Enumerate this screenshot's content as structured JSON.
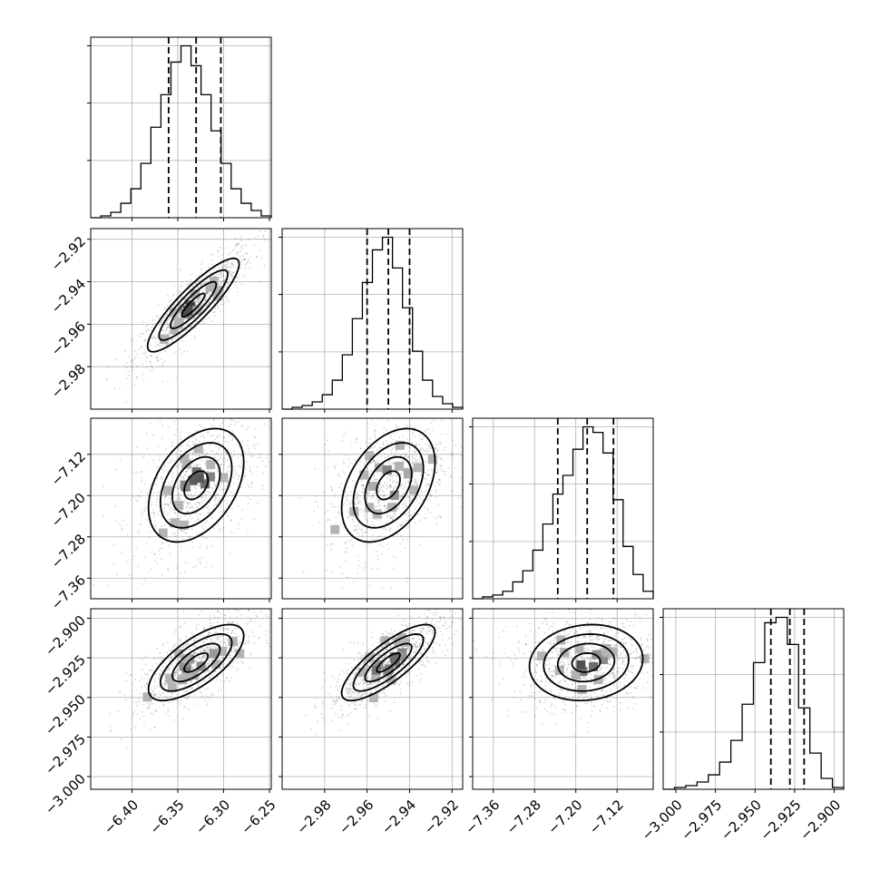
{
  "chart_data": {
    "type": "corner",
    "grid": true,
    "parameters": [
      {
        "range": [
          -6.445,
          -6.248
        ],
        "ticks": [
          -6.4,
          -6.35,
          -6.3,
          -6.25
        ],
        "tick_labels": [
          "−6.40",
          "−6.35",
          "−6.30",
          "−6.25"
        ],
        "quantiles": [
          -6.36,
          -6.33,
          -6.303
        ],
        "histogram": [
          0,
          1,
          3,
          8,
          16,
          30,
          50,
          68,
          86,
          95,
          84,
          68,
          48,
          30,
          16,
          8,
          4,
          1
        ]
      },
      {
        "range": [
          -3.0,
          -2.915
        ],
        "ticks": [
          -2.98,
          -2.96,
          -2.94,
          -2.92
        ],
        "tick_labels": [
          "−2.98",
          "−2.96",
          "−2.94",
          "−2.92"
        ],
        "quantiles": [
          -2.96,
          -2.95,
          -2.94
        ],
        "histogram": [
          0,
          1,
          2,
          4,
          8,
          16,
          30,
          50,
          70,
          88,
          95,
          78,
          56,
          32,
          16,
          7,
          3,
          1
        ]
      },
      {
        "range": [
          -7.4,
          -7.05
        ],
        "ticks": [
          -7.36,
          -7.28,
          -7.2,
          -7.12
        ],
        "tick_labels": [
          "−7.36",
          "−7.28",
          "−7.20",
          "−7.12"
        ],
        "quantiles": [
          -7.235,
          -7.178,
          -7.127
        ],
        "histogram": [
          0,
          1,
          2,
          4,
          9,
          15,
          26,
          40,
          56,
          66,
          80,
          92,
          89,
          78,
          53,
          28,
          13,
          4
        ]
      },
      {
        "range": [
          -3.008,
          -2.894
        ],
        "ticks": [
          -3.0,
          -2.975,
          -2.95,
          -2.925,
          -2.9
        ],
        "tick_labels": [
          "−3.000",
          "−2.975",
          "−2.950",
          "−2.925",
          "−2.900"
        ],
        "quantiles": [
          -2.94,
          -2.928,
          -2.919
        ],
        "histogram": [
          0,
          1,
          2,
          4,
          8,
          15,
          27,
          47,
          70,
          92,
          95,
          80,
          45,
          20,
          6,
          1
        ]
      }
    ],
    "pairs": [
      {
        "x": 0,
        "y": 1,
        "center": [
          -6.333,
          -2.951
        ],
        "sigma": [
          0.025,
          0.011
        ],
        "rho": 0.88
      },
      {
        "x": 0,
        "y": 2,
        "center": [
          -6.33,
          -7.18
        ],
        "sigma": [
          0.026,
          0.055
        ],
        "rho": 0.4
      },
      {
        "x": 1,
        "y": 2,
        "center": [
          -2.95,
          -7.18
        ],
        "sigma": [
          0.011,
          0.055
        ],
        "rho": 0.4
      },
      {
        "x": 0,
        "y": 3,
        "center": [
          -6.33,
          -2.928
        ],
        "sigma": [
          0.026,
          0.012
        ],
        "rho": 0.7
      },
      {
        "x": 1,
        "y": 3,
        "center": [
          -2.95,
          -2.928
        ],
        "sigma": [
          0.011,
          0.012
        ],
        "rho": 0.8
      },
      {
        "x": 2,
        "y": 3,
        "center": [
          -7.18,
          -2.928
        ],
        "sigma": [
          0.055,
          0.012
        ],
        "rho": 0.1
      }
    ],
    "contour_levels_sigma": [
      0.5,
      1.0,
      1.5,
      2.0
    ]
  }
}
